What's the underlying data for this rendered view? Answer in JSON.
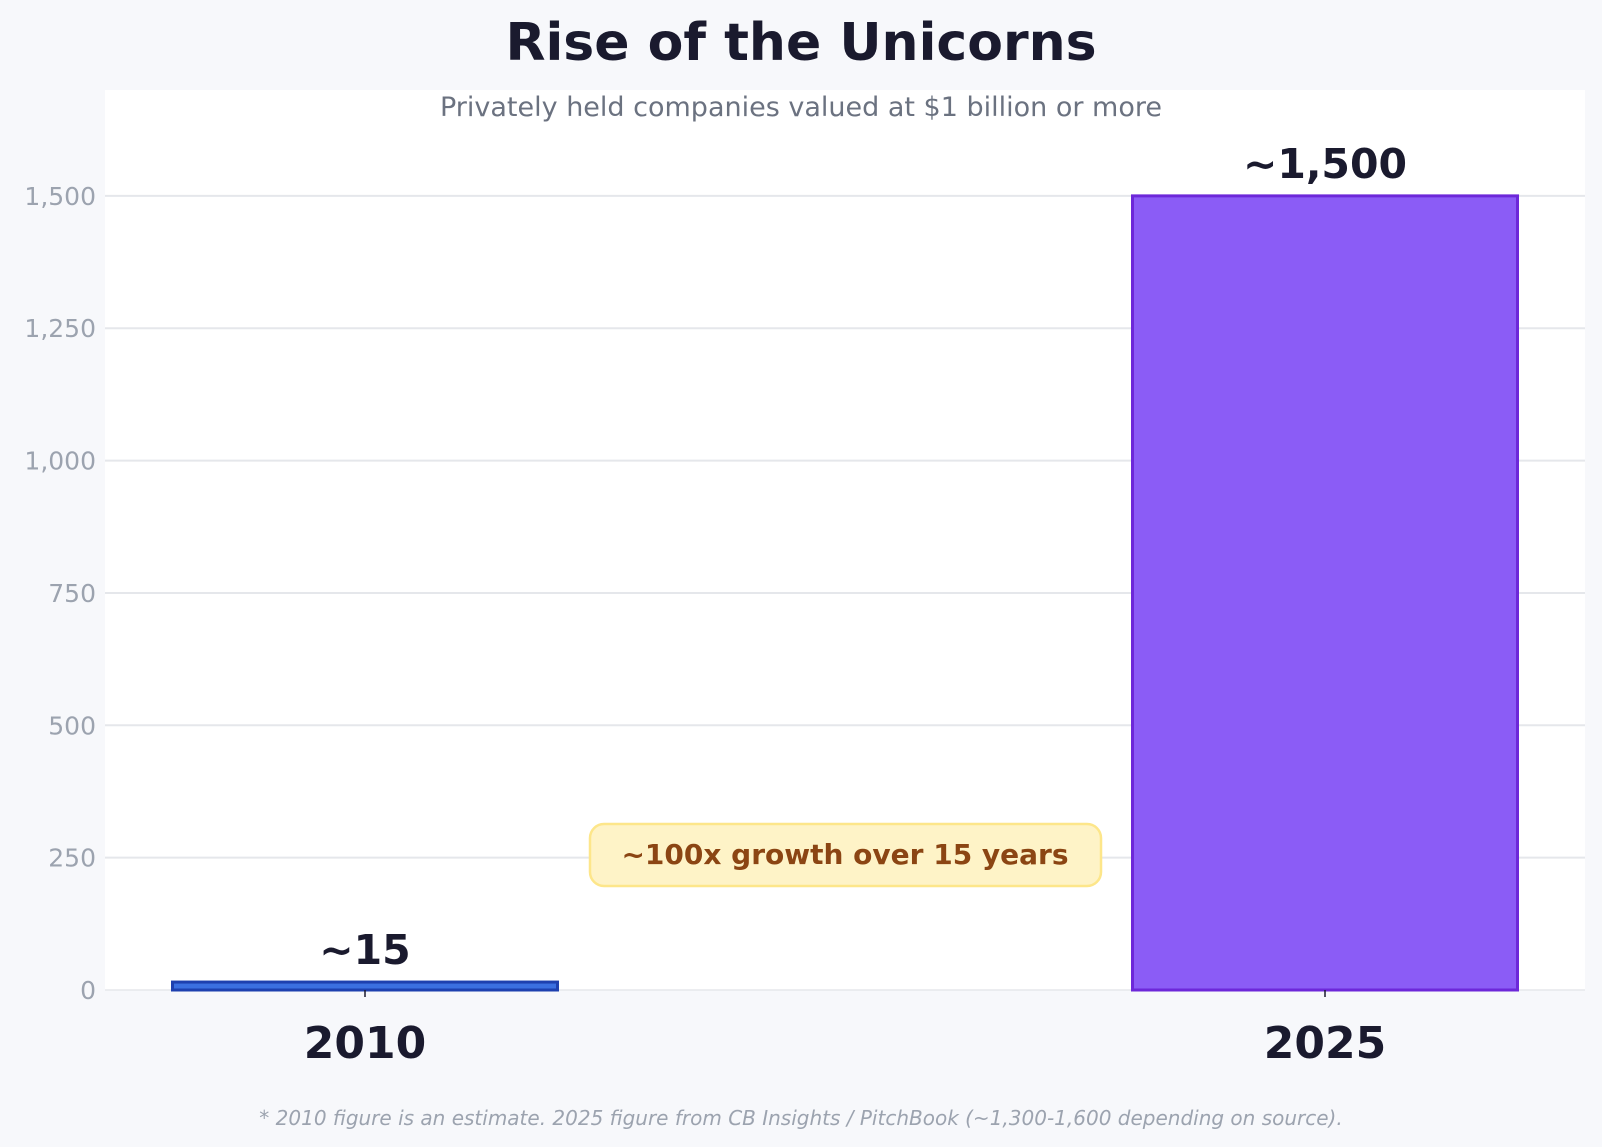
{
  "chart_data": {
    "type": "bar",
    "title": "Rise of the Unicorns",
    "subtitle": "Privately held companies valued at $1 billion or more",
    "categories": [
      "2010",
      "2025"
    ],
    "values": [
      15,
      1500
    ],
    "value_labels": [
      "~15",
      "~1,500"
    ],
    "colors": [
      "#3b6fe0",
      "#8b5cf6"
    ],
    "edge_colors": [
      "#1e40af",
      "#6d28d9"
    ],
    "ylim": [
      0,
      1700
    ],
    "yticks": [
      0,
      250,
      500,
      750,
      1000,
      1250,
      1500
    ],
    "ytick_labels": [
      "0",
      "250",
      "500",
      "750",
      "1,000",
      "1,250",
      "1,500"
    ],
    "grid": true,
    "annotation": "~100x growth over 15 years",
    "footnote": "* 2010 figure is an estimate. 2025 figure from CB Insights / PitchBook (~1,300-1,600 depending on source)."
  }
}
